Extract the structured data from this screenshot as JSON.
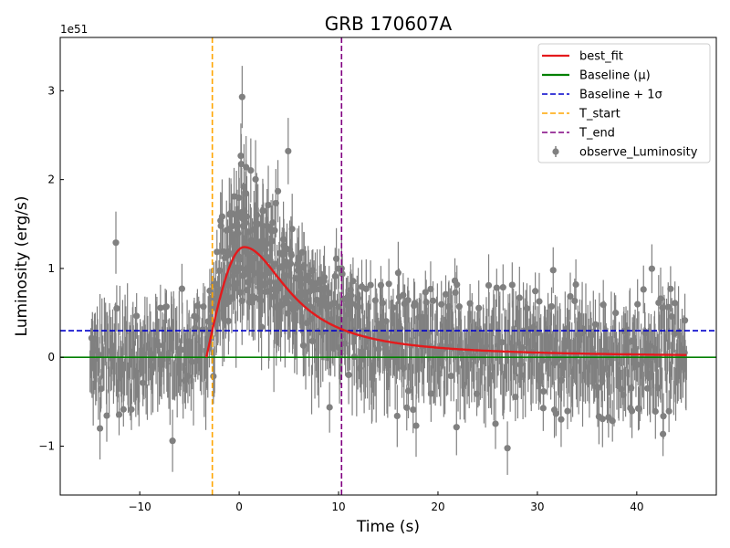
{
  "chart_data": {
    "type": "scatter",
    "title": "GRB 170607A",
    "xlabel": "Time (s)",
    "ylabel": "Luminosity (erg/s)",
    "y_scale_label": "1e51",
    "xlim": [
      -18,
      48
    ],
    "ylim": [
      -1.55,
      3.6
    ],
    "xticks": [
      -10,
      0,
      10,
      20,
      30,
      40
    ],
    "xtick_labels": [
      "−10",
      "0",
      "10",
      "20",
      "30",
      "40"
    ],
    "yticks": [
      -1,
      0,
      1,
      2,
      3
    ],
    "ytick_labels": [
      "−1",
      "0",
      "1",
      "2",
      "3"
    ],
    "legend_position": "top-right",
    "colors": {
      "observed": "#808080",
      "best_fit": "#e41a1c",
      "baseline": "#008000",
      "baseline_sigma": "#0000cc",
      "t_start": "#ffa500",
      "t_end": "#800080"
    },
    "series": [
      {
        "name": "observe_Luminosity",
        "kind": "errorbar",
        "x_range": [
          -15,
          45
        ],
        "sample_points": [
          {
            "x": 0.3,
            "y": 2.93
          },
          {
            "x": -12.4,
            "y": 1.29
          },
          {
            "x": -6.7,
            "y": -0.94
          },
          {
            "x": 0.7,
            "y": 2.14
          },
          {
            "x": 3.9,
            "y": 1.87
          },
          {
            "x": 10.3,
            "y": 1.0
          },
          {
            "x": 16.0,
            "y": 0.95
          },
          {
            "x": 25.1,
            "y": 0.81
          },
          {
            "x": 28.2,
            "y": 0.67
          },
          {
            "x": 42.4,
            "y": 0.66
          },
          {
            "x": -14.0,
            "y": -0.8
          },
          {
            "x": 17.8,
            "y": -0.77
          },
          {
            "x": 15.9,
            "y": -0.66
          }
        ],
        "noise_sigma": 0.28,
        "typical_error": 0.25
      },
      {
        "name": "best_fit",
        "kind": "line",
        "model": "pulse",
        "t_start": -3.3,
        "peak_x": 0.5,
        "peak_y": 1.24
      },
      {
        "name": "Baseline (μ)",
        "kind": "hline",
        "y": 0.0
      },
      {
        "name": "Baseline + 1σ",
        "kind": "hline",
        "y": 0.3
      },
      {
        "name": "T_start",
        "kind": "vline",
        "x": -2.7
      },
      {
        "name": "T_end",
        "kind": "vline",
        "x": 10.3
      }
    ],
    "legend": [
      {
        "label": "best_fit",
        "style": "solid",
        "color": "#e41a1c"
      },
      {
        "label": "Baseline (μ)",
        "style": "solid",
        "color": "#008000"
      },
      {
        "label": "Baseline + 1σ",
        "style": "dashed",
        "color": "#0000cc"
      },
      {
        "label": "T_start",
        "style": "dashed",
        "color": "#ffa500"
      },
      {
        "label": "T_end",
        "style": "dashed",
        "color": "#800080"
      },
      {
        "label": "observe_Luminosity",
        "style": "errorbar",
        "color": "#808080"
      }
    ]
  }
}
